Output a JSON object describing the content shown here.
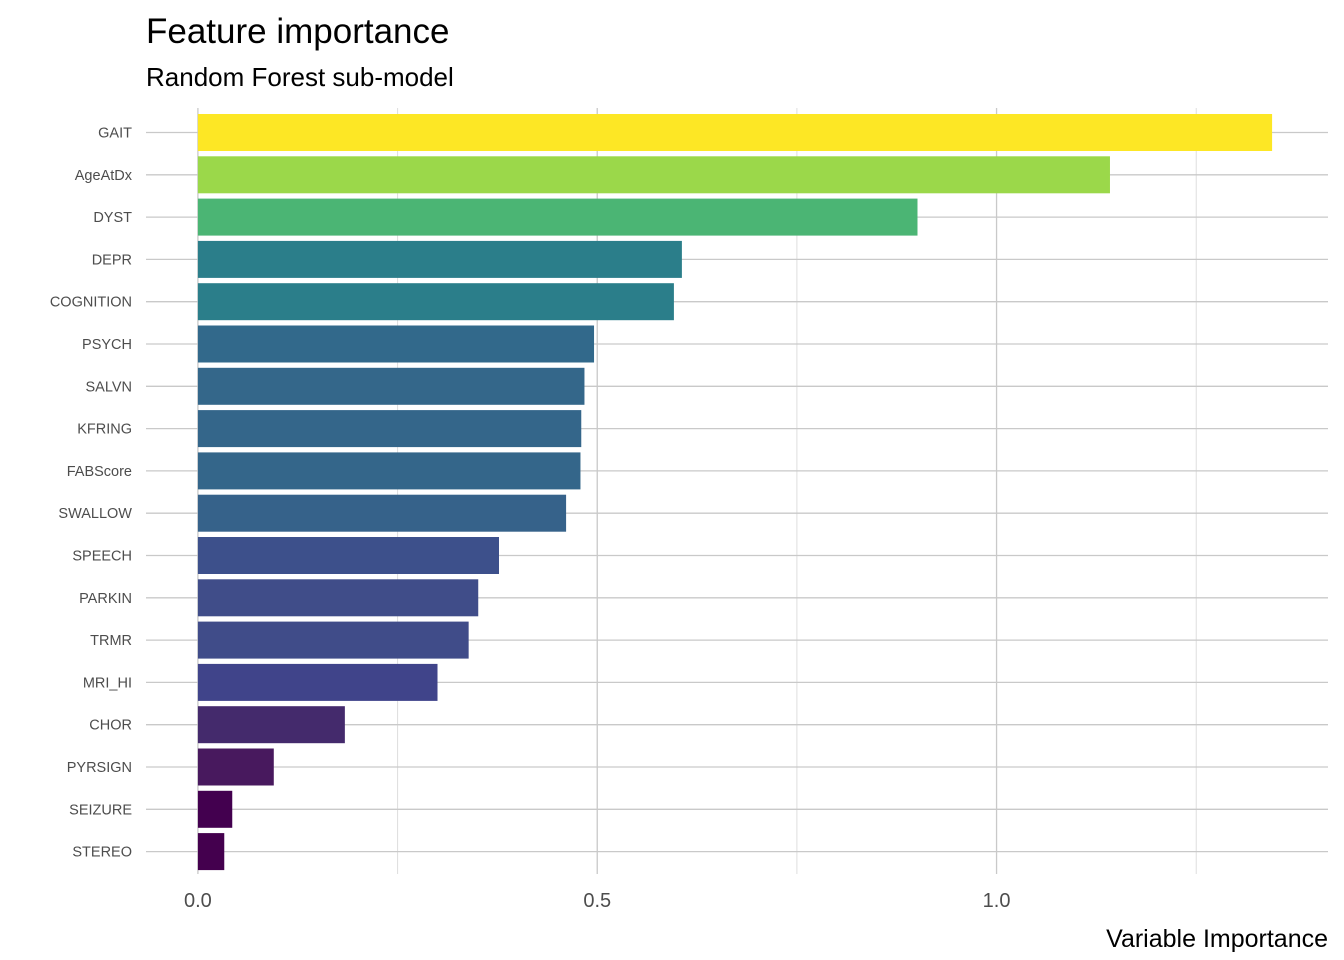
{
  "chart_data": {
    "type": "bar",
    "orientation": "horizontal",
    "title": "Feature importance",
    "subtitle": "Random Forest sub-model",
    "xlabel": "Variable Importance",
    "ylabel": "",
    "xlim": [
      -0.065,
      1.415
    ],
    "x_ticks": [
      0.0,
      0.5,
      1.0
    ],
    "x_tick_labels": [
      "0.0",
      "0.5",
      "1.0"
    ],
    "x_minor_ticks": [
      0.25,
      0.75,
      1.25
    ],
    "grid": true,
    "legend": "none",
    "categories": [
      "GAIT",
      "AgeAtDx",
      "DYST",
      "DEPR",
      "COGNITION",
      "PSYCH",
      "SALVN",
      "KFRING",
      "FABScore",
      "SWALLOW",
      "SPEECH",
      "PARKIN",
      "TRMR",
      "MRI_HI",
      "CHOR",
      "PYRSIGN",
      "SEIZURE",
      "STEREO"
    ],
    "values": [
      1.345,
      1.142,
      0.901,
      0.606,
      0.596,
      0.496,
      0.484,
      0.48,
      0.479,
      0.461,
      0.377,
      0.351,
      0.339,
      0.3,
      0.184,
      0.095,
      0.043,
      0.033
    ],
    "colors": [
      "#FDE725",
      "#9BD84A",
      "#4BB574",
      "#2B7E8A",
      "#2B7E8A",
      "#32698B",
      "#34678A",
      "#34668A",
      "#34668A",
      "#36628A",
      "#3D508B",
      "#404D89",
      "#404C89",
      "#40448A",
      "#442A6C",
      "#48195E",
      "#43004F",
      "#44004E"
    ]
  }
}
